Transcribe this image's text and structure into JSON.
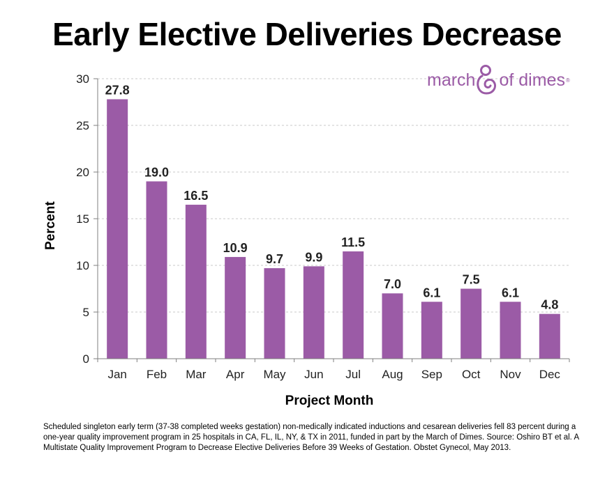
{
  "title": "Early Elective Deliveries Decrease",
  "logo": {
    "left_text": "march",
    "right_text": "of dimes",
    "reg_mark": "®",
    "color": "#9b5ba6"
  },
  "caption": "Scheduled singleton early term (37-38 completed weeks gestation) non-medically indicated inductions and cesarean deliveries fell 83 percent during a one-year quality improvement program in 25 hospitals in CA, FL, IL, NY, & TX in 2011, funded in part by the March of Dimes. Source: Oshiro BT et al. A Multistate Quality Improvement Program to Decrease Elective Deliveries Before 39 Weeks of Gestation. Obstet Gynecol, May 2013.",
  "chart_data": {
    "type": "bar",
    "categories": [
      "Jan",
      "Feb",
      "Mar",
      "Apr",
      "May",
      "Jun",
      "Jul",
      "Aug",
      "Sep",
      "Oct",
      "Nov",
      "Dec"
    ],
    "values": [
      27.8,
      19.0,
      16.5,
      10.9,
      9.7,
      9.9,
      11.5,
      7.0,
      6.1,
      7.5,
      6.1,
      4.8
    ],
    "data_labels": [
      "27.8",
      "19.0",
      "16.5",
      "10.9",
      "9.7",
      "9.9",
      "11.5",
      "7.0",
      "6.1",
      "7.5",
      "6.1",
      "4.8"
    ],
    "xlabel": "Project Month",
    "ylabel": "Percent",
    "ylim": [
      0,
      30
    ],
    "yticks": [
      0,
      5,
      10,
      15,
      20,
      25,
      30
    ],
    "grid": true,
    "legend": "none",
    "bar_color": "#9b5ba6"
  }
}
